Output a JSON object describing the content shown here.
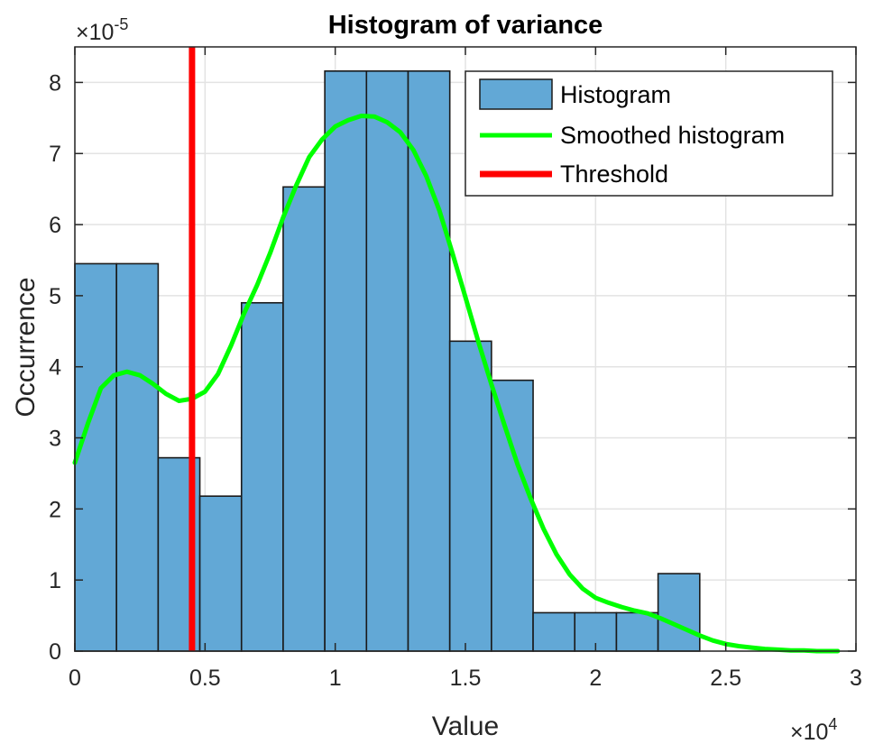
{
  "chart_data": {
    "type": "bar",
    "title": "Histogram of variance",
    "xlabel": "Value",
    "ylabel": "Occurrence",
    "x_multiplier": "×10",
    "x_multiplier_exp": "4",
    "y_multiplier": "×10",
    "y_multiplier_exp": "-5",
    "xlim": [
      0,
      3
    ],
    "ylim": [
      0,
      8.5
    ],
    "grid": true,
    "legend_position": "top-right",
    "xticks": [
      0,
      0.5,
      1,
      1.5,
      2,
      2.5,
      3
    ],
    "xtick_labels": [
      "0",
      "0.5",
      "1",
      "1.5",
      "2",
      "2.5",
      "3"
    ],
    "yticks": [
      0,
      1,
      2,
      3,
      4,
      5,
      6,
      7,
      8
    ],
    "ytick_labels": [
      "0",
      "1",
      "2",
      "3",
      "4",
      "5",
      "6",
      "7",
      "8"
    ],
    "bin_width": 0.16,
    "bin_edges": [
      0,
      0.16,
      0.32,
      0.48,
      0.64,
      0.8,
      0.96,
      1.12,
      1.28,
      1.44,
      1.6,
      1.76,
      1.92,
      2.08,
      2.24,
      2.4
    ],
    "series": [
      {
        "name": "Histogram",
        "kind": "histogram",
        "color": "#62a8d6",
        "edge_color": "#1a1a1a",
        "values": [
          5.45,
          5.45,
          2.72,
          2.18,
          4.9,
          6.53,
          8.16,
          8.16,
          8.16,
          4.36,
          3.81,
          0.54,
          0.54,
          0.54,
          1.09
        ]
      },
      {
        "name": "Smoothed histogram",
        "kind": "line",
        "color": "#00ff00",
        "x": [
          0,
          0.05,
          0.1,
          0.15,
          0.2,
          0.25,
          0.3,
          0.35,
          0.4,
          0.45,
          0.5,
          0.55,
          0.6,
          0.65,
          0.7,
          0.75,
          0.8,
          0.85,
          0.9,
          0.95,
          1.0,
          1.05,
          1.1,
          1.15,
          1.2,
          1.25,
          1.3,
          1.35,
          1.4,
          1.45,
          1.5,
          1.55,
          1.6,
          1.65,
          1.7,
          1.75,
          1.8,
          1.85,
          1.9,
          1.95,
          2.0,
          2.05,
          2.1,
          2.15,
          2.2,
          2.25,
          2.3,
          2.35,
          2.4,
          2.45,
          2.5,
          2.55,
          2.6,
          2.65,
          2.7,
          2.75,
          2.8,
          2.85,
          2.9,
          2.93
        ],
        "y": [
          2.65,
          3.2,
          3.7,
          3.88,
          3.93,
          3.88,
          3.76,
          3.62,
          3.52,
          3.55,
          3.65,
          3.9,
          4.3,
          4.75,
          5.15,
          5.6,
          6.1,
          6.55,
          6.95,
          7.2,
          7.38,
          7.47,
          7.53,
          7.52,
          7.44,
          7.3,
          7.05,
          6.68,
          6.2,
          5.6,
          4.98,
          4.35,
          3.75,
          3.18,
          2.63,
          2.15,
          1.72,
          1.36,
          1.08,
          0.88,
          0.75,
          0.68,
          0.62,
          0.57,
          0.53,
          0.46,
          0.38,
          0.3,
          0.22,
          0.15,
          0.1,
          0.07,
          0.05,
          0.03,
          0.02,
          0.01,
          0.01,
          0.0,
          0.0,
          0.0
        ]
      },
      {
        "name": "Threshold",
        "kind": "vline",
        "color": "#ff0000",
        "x": 0.45
      }
    ]
  }
}
